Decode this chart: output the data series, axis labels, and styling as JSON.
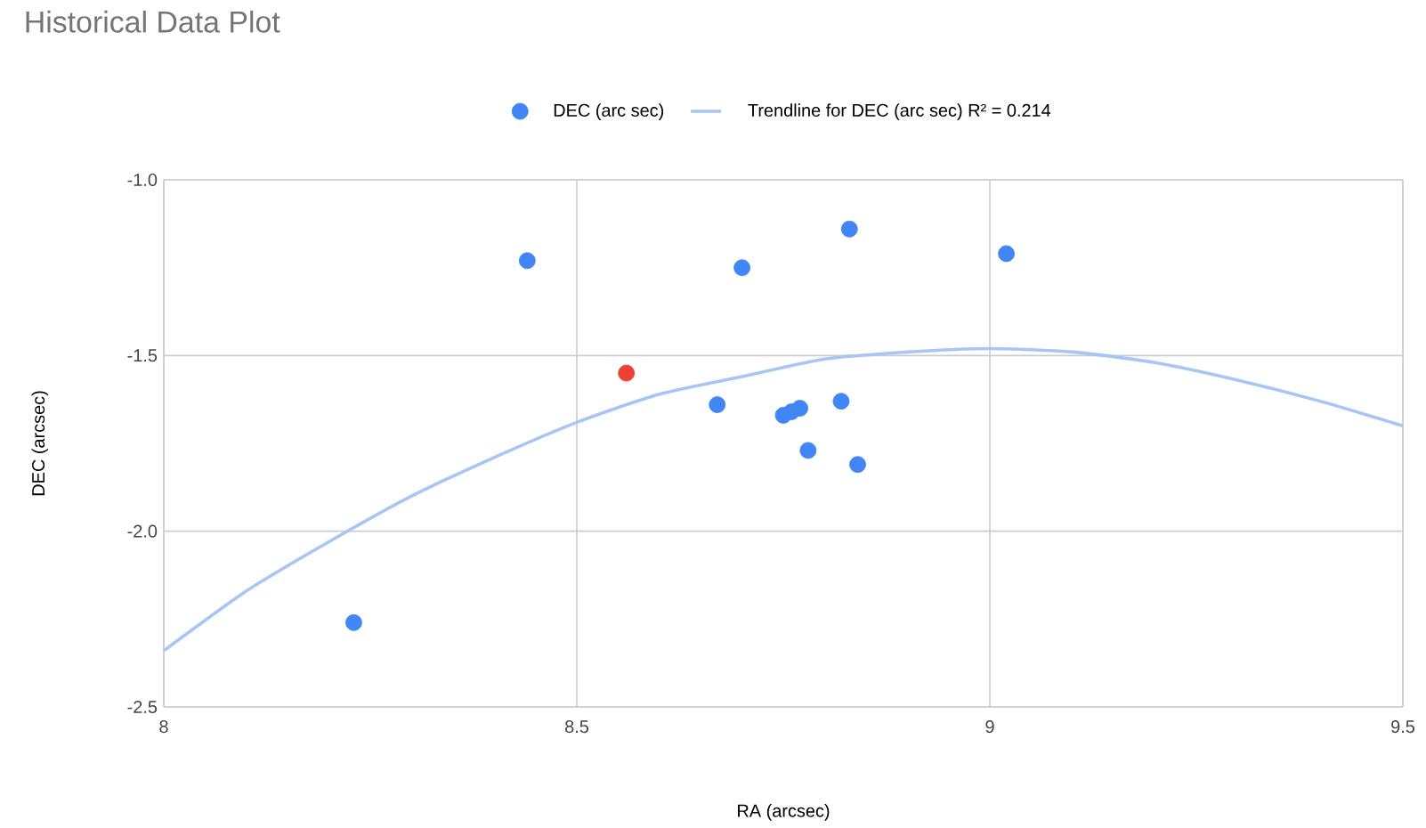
{
  "chart_data": {
    "type": "scatter",
    "title": "Historical Data Plot",
    "xlabel": "RA (arcsec)",
    "ylabel": "DEC (arcsec)",
    "xlim": [
      8,
      9.5
    ],
    "xticks": [
      8,
      8.5,
      9,
      9.5
    ],
    "ylim": [
      -2.5,
      -1
    ],
    "yticks": [
      {
        "value": -1,
        "label": "-1.0"
      },
      -1.5,
      {
        "value": -2,
        "label": "-2.0"
      },
      -2.5
    ],
    "grid": true,
    "legend": "top",
    "series": [
      {
        "name": "DEC (arc sec)",
        "color": "#4285f4",
        "marker": "circle",
        "x": [
          8.44,
          8.23,
          8.7,
          8.83,
          9.02,
          8.67,
          8.75,
          8.76,
          8.77,
          8.82,
          8.78,
          8.84
        ],
        "values": [
          -1.23,
          -2.26,
          -1.25,
          -1.14,
          -1.21,
          -1.64,
          -1.67,
          -1.66,
          -1.65,
          -1.63,
          -1.77,
          -1.81
        ]
      },
      {
        "color": "#ea4335",
        "marker": "circle",
        "x": [
          8.56
        ],
        "values": [
          -1.55
        ]
      },
      {
        "type": "line",
        "name": "Trendline for DEC (arc sec) R² = 0.214",
        "color": "#a9c5f5",
        "marker": "none",
        "x": [
          8.0,
          8.1,
          8.2,
          8.3,
          8.4,
          8.5,
          8.6,
          8.7,
          8.8,
          8.9,
          9.0,
          9.1,
          9.2,
          9.3,
          9.4,
          9.5
        ],
        "values": [
          -2.34,
          -2.17,
          -2.03,
          -1.9,
          -1.79,
          -1.69,
          -1.61,
          -1.56,
          -1.51,
          -1.49,
          -1.48,
          -1.49,
          -1.52,
          -1.57,
          -1.63,
          -1.7
        ]
      }
    ]
  }
}
